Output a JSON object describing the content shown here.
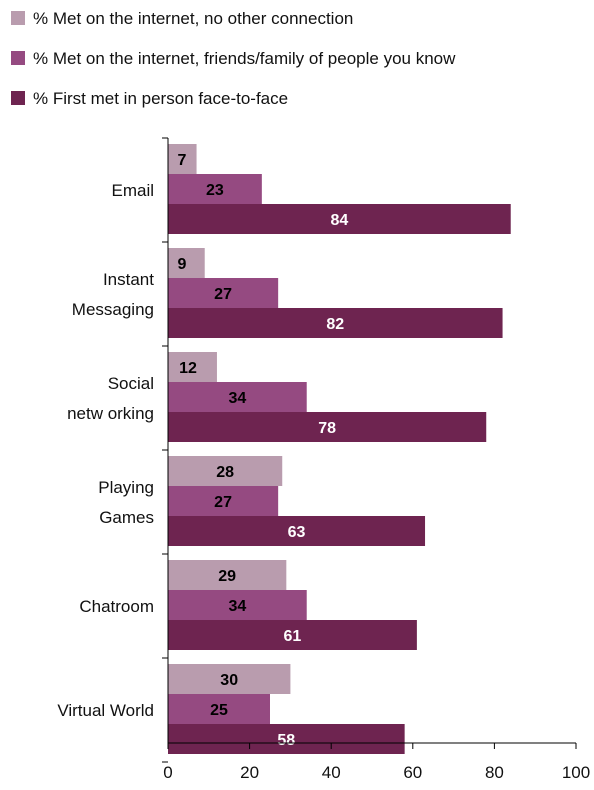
{
  "chart_data": {
    "type": "bar",
    "orientation": "horizontal",
    "title": "",
    "xlabel": "",
    "ylabel": "",
    "xlim": [
      0,
      100
    ],
    "xticks": [
      0,
      20,
      40,
      60,
      80,
      100
    ],
    "grid": false,
    "legend_position": "top",
    "categories": [
      [
        "Email"
      ],
      [
        "Instant",
        "Messaging"
      ],
      [
        "Social",
        "netw orking"
      ],
      [
        "Playing",
        "Games"
      ],
      [
        "Chatroom"
      ],
      [
        "Virtual World"
      ]
    ],
    "series": [
      {
        "name": "% Met on the internet, no other connection",
        "color": "#b99cae",
        "label_color": "#000000",
        "values": [
          7,
          9,
          12,
          28,
          29,
          30
        ]
      },
      {
        "name": "% Met on the internet, friends/family of people you know",
        "color": "#954a81",
        "label_color": "#000000",
        "values": [
          23,
          27,
          34,
          27,
          34,
          25
        ]
      },
      {
        "name": "% First met in person face-to-face",
        "color": "#6e2450",
        "label_color": "#ffffff",
        "values": [
          84,
          82,
          78,
          63,
          61,
          58
        ]
      }
    ]
  }
}
